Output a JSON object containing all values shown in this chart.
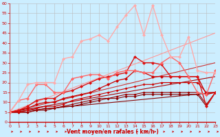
{
  "background_color": "#cceeff",
  "grid_color": "#bbbbbb",
  "xlabel": "Vent moyen/en rafales ( km/h )",
  "xlabel_color": "#cc0000",
  "tick_color": "#cc0000",
  "ylim": [
    0,
    60
  ],
  "xlim": [
    0,
    23
  ],
  "yticks": [
    0,
    5,
    10,
    15,
    20,
    25,
    30,
    35,
    40,
    45,
    50,
    55,
    60
  ],
  "xticks": [
    0,
    1,
    2,
    3,
    4,
    5,
    6,
    7,
    8,
    9,
    10,
    11,
    12,
    13,
    14,
    15,
    16,
    17,
    18,
    19,
    20,
    21,
    22,
    23
  ],
  "lines": [
    {
      "x": [
        0,
        23
      ],
      "y": [
        5,
        15
      ],
      "color": "#880000",
      "linewidth": 0.8,
      "marker": null,
      "linestyle": "-"
    },
    {
      "x": [
        0,
        23
      ],
      "y": [
        5,
        23
      ],
      "color": "#aa0000",
      "linewidth": 0.8,
      "marker": null,
      "linestyle": "-"
    },
    {
      "x": [
        0,
        23
      ],
      "y": [
        5,
        30
      ],
      "color": "#cc3333",
      "linewidth": 0.8,
      "marker": null,
      "linestyle": "-"
    },
    {
      "x": [
        0,
        23
      ],
      "y": [
        5,
        45
      ],
      "color": "#ff9999",
      "linewidth": 0.8,
      "marker": null,
      "linestyle": "-"
    },
    {
      "x": [
        0,
        1,
        2,
        3,
        4,
        5,
        6,
        7,
        8,
        9,
        10,
        11,
        12,
        13,
        14,
        15,
        16,
        17,
        18,
        19,
        20,
        21,
        22,
        23
      ],
      "y": [
        5,
        5,
        5,
        6,
        6,
        7,
        8,
        8,
        9,
        10,
        11,
        12,
        12,
        13,
        13,
        14,
        14,
        14,
        14,
        14,
        14,
        14,
        8,
        15
      ],
      "color": "#880000",
      "linewidth": 0.8,
      "marker": "D",
      "markersize": 2,
      "linestyle": "-"
    },
    {
      "x": [
        0,
        1,
        2,
        3,
        4,
        5,
        6,
        7,
        8,
        9,
        10,
        11,
        12,
        13,
        14,
        15,
        16,
        17,
        18,
        19,
        20,
        21,
        22,
        23
      ],
      "y": [
        5,
        5,
        5,
        6,
        7,
        7,
        8,
        9,
        10,
        11,
        12,
        12,
        13,
        14,
        14,
        15,
        15,
        15,
        15,
        15,
        15,
        15,
        9,
        15
      ],
      "color": "#990000",
      "linewidth": 0.8,
      "marker": "D",
      "markersize": 2,
      "linestyle": "-"
    },
    {
      "x": [
        0,
        1,
        2,
        3,
        4,
        5,
        6,
        7,
        8,
        9,
        10,
        11,
        12,
        13,
        14,
        15,
        16,
        17,
        18,
        19,
        20,
        21,
        22,
        23
      ],
      "y": [
        5,
        5,
        6,
        7,
        8,
        8,
        9,
        11,
        12,
        13,
        14,
        15,
        16,
        17,
        18,
        19,
        19,
        20,
        20,
        20,
        20,
        20,
        15,
        15
      ],
      "color": "#cc0000",
      "linewidth": 0.8,
      "marker": "D",
      "markersize": 2,
      "linestyle": "-"
    },
    {
      "x": [
        0,
        1,
        2,
        3,
        4,
        5,
        6,
        7,
        8,
        9,
        10,
        11,
        12,
        13,
        14,
        15,
        16,
        17,
        18,
        19,
        20,
        21,
        22,
        23
      ],
      "y": [
        5,
        6,
        7,
        9,
        10,
        10,
        12,
        13,
        14,
        15,
        17,
        19,
        21,
        22,
        26,
        25,
        23,
        23,
        23,
        23,
        23,
        23,
        14,
        15
      ],
      "color": "#cc0000",
      "linewidth": 0.9,
      "marker": "D",
      "markersize": 2.5,
      "linestyle": "-"
    },
    {
      "x": [
        0,
        1,
        2,
        3,
        4,
        5,
        6,
        7,
        8,
        9,
        10,
        11,
        12,
        13,
        14,
        15,
        16,
        17,
        18,
        19,
        20,
        21,
        22,
        23
      ],
      "y": [
        5,
        6,
        8,
        11,
        12,
        12,
        15,
        16,
        18,
        20,
        22,
        23,
        24,
        25,
        33,
        30,
        30,
        29,
        23,
        23,
        23,
        23,
        8,
        15
      ],
      "color": "#dd1111",
      "linewidth": 1.0,
      "marker": "D",
      "markersize": 2.5,
      "linestyle": "-"
    },
    {
      "x": [
        0,
        1,
        2,
        3,
        4,
        5,
        6,
        7,
        8,
        9,
        10,
        11,
        12,
        13,
        14,
        15,
        16,
        17,
        18,
        19,
        20,
        21,
        22,
        23
      ],
      "y": [
        5,
        11,
        12,
        19,
        19,
        15,
        15,
        22,
        23,
        24,
        24,
        22,
        25,
        26,
        26,
        25,
        25,
        30,
        33,
        30,
        23,
        15,
        14,
        26
      ],
      "color": "#ff6666",
      "linewidth": 1.0,
      "marker": "D",
      "markersize": 2.5,
      "linestyle": "-"
    },
    {
      "x": [
        0,
        1,
        2,
        3,
        4,
        5,
        6,
        7,
        8,
        9,
        10,
        11,
        12,
        13,
        14,
        15,
        16,
        17,
        18,
        19,
        20,
        21,
        22,
        23
      ],
      "y": [
        5,
        11,
        19,
        20,
        20,
        20,
        32,
        33,
        41,
        42,
        44,
        41,
        48,
        54,
        59,
        44,
        59,
        44,
        33,
        33,
        43,
        26,
        25,
        25
      ],
      "color": "#ffaaaa",
      "linewidth": 1.0,
      "marker": "D",
      "markersize": 2.5,
      "linestyle": "-"
    }
  ],
  "arrow_color": "#cc0000",
  "spine_color": "#cc0000"
}
